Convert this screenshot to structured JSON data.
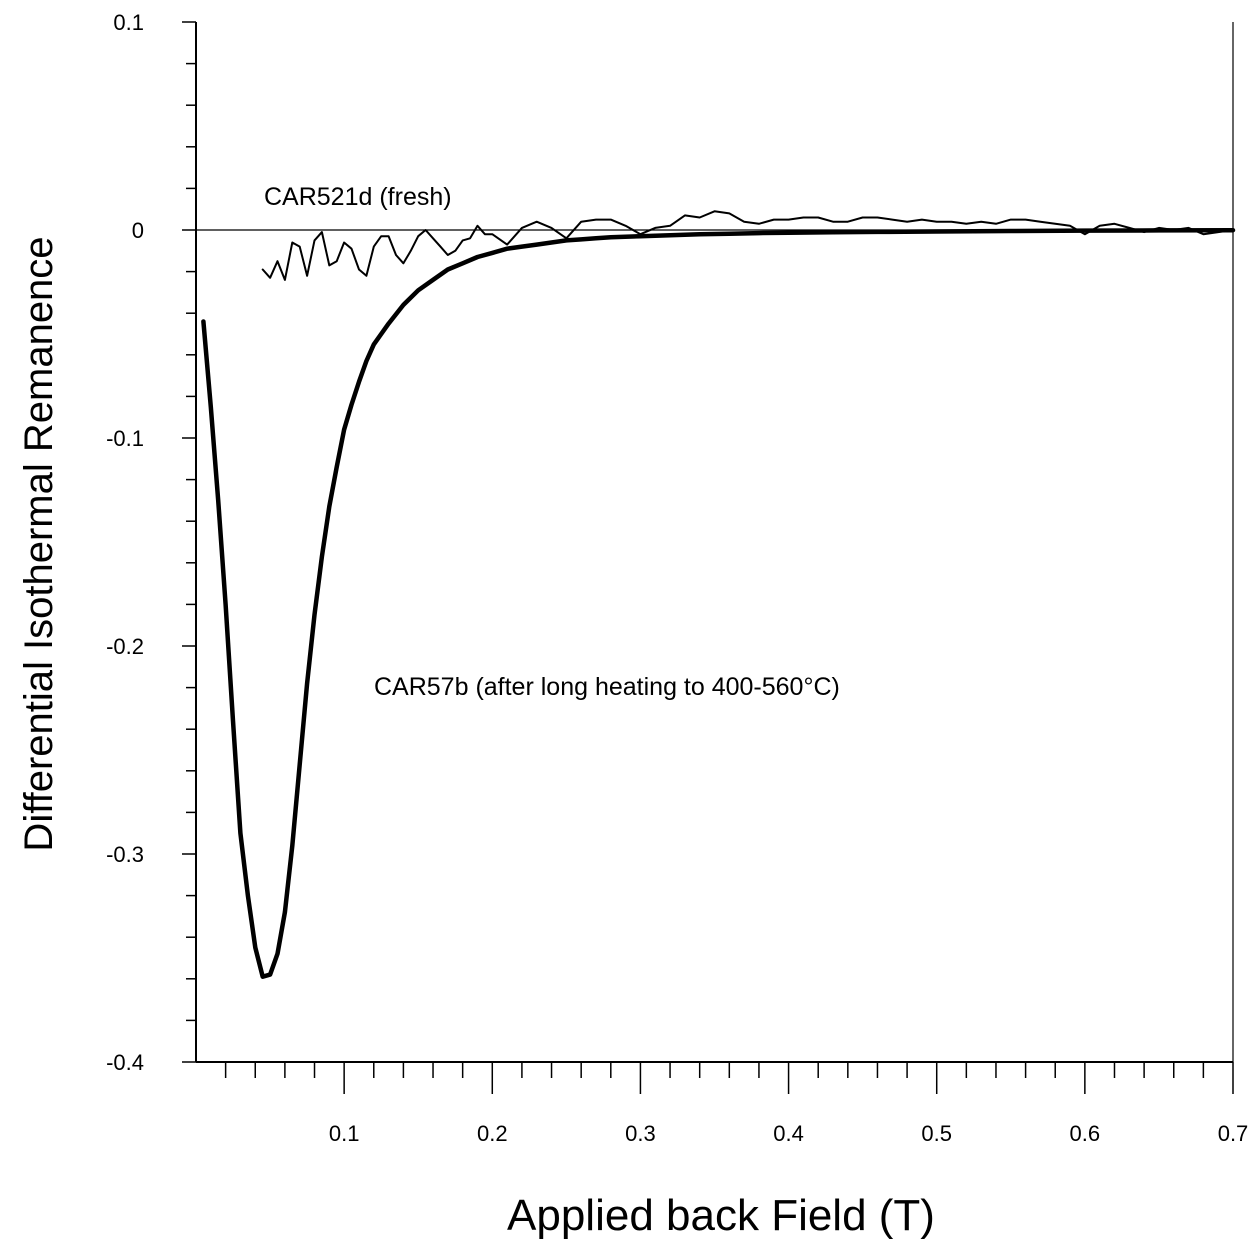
{
  "chart_data": {
    "type": "line",
    "title": "",
    "xlabel": "Applied back Field (T)",
    "ylabel": "Differential Isothermal Remanence",
    "xlim": [
      0,
      0.7
    ],
    "ylim": [
      -0.4,
      0.1
    ],
    "x_ticks": [
      "0.1",
      "0.2",
      "0.3",
      "0.4",
      "0.5",
      "0.6",
      "0.7"
    ],
    "y_ticks": [
      "0.1",
      "0",
      "-0.1",
      "-0.2",
      "-0.3",
      "-0.4"
    ],
    "zero_line": true,
    "grid": false,
    "annotations": [
      "CAR521d (fresh)",
      "CAR57b (after long heating to 400-560°C)"
    ],
    "series": [
      {
        "label": "CAR57b (after long heating to 400-560°C)",
        "style": "thick",
        "x": [
          0.005,
          0.01,
          0.015,
          0.02,
          0.025,
          0.03,
          0.035,
          0.04,
          0.045,
          0.05,
          0.055,
          0.06,
          0.065,
          0.07,
          0.075,
          0.08,
          0.085,
          0.09,
          0.095,
          0.1,
          0.105,
          0.11,
          0.115,
          0.12,
          0.13,
          0.14,
          0.15,
          0.16,
          0.17,
          0.18,
          0.19,
          0.2,
          0.21,
          0.22,
          0.23,
          0.24,
          0.25,
          0.26,
          0.27,
          0.28,
          0.3,
          0.32,
          0.34,
          0.36,
          0.38,
          0.4,
          0.43,
          0.46,
          0.5,
          0.55,
          0.6,
          0.65,
          0.7
        ],
        "y": [
          -0.044,
          -0.085,
          -0.13,
          -0.18,
          -0.236,
          -0.29,
          -0.32,
          -0.345,
          -0.359,
          -0.358,
          -0.348,
          -0.328,
          -0.296,
          -0.257,
          -0.218,
          -0.185,
          -0.157,
          -0.133,
          -0.114,
          -0.096,
          -0.084,
          -0.073,
          -0.063,
          -0.055,
          -0.045,
          -0.036,
          -0.029,
          -0.024,
          -0.019,
          -0.016,
          -0.013,
          -0.011,
          -0.009,
          -0.008,
          -0.007,
          -0.006,
          -0.005,
          -0.0045,
          -0.004,
          -0.0035,
          -0.003,
          -0.0025,
          -0.002,
          -0.0018,
          -0.0015,
          -0.0013,
          -0.0011,
          -0.0009,
          -0.0007,
          -0.0005,
          -0.0003,
          -0.0002,
          -0.0001
        ]
      },
      {
        "label": "CAR521d (fresh)",
        "style": "thin",
        "x": [
          0.045,
          0.05,
          0.055,
          0.06,
          0.065,
          0.07,
          0.075,
          0.08,
          0.085,
          0.09,
          0.095,
          0.1,
          0.105,
          0.11,
          0.115,
          0.12,
          0.125,
          0.13,
          0.135,
          0.14,
          0.145,
          0.15,
          0.155,
          0.16,
          0.165,
          0.17,
          0.175,
          0.18,
          0.185,
          0.19,
          0.195,
          0.2,
          0.21,
          0.22,
          0.23,
          0.24,
          0.25,
          0.26,
          0.27,
          0.28,
          0.29,
          0.3,
          0.31,
          0.32,
          0.33,
          0.34,
          0.35,
          0.36,
          0.37,
          0.38,
          0.39,
          0.4,
          0.41,
          0.42,
          0.43,
          0.44,
          0.45,
          0.46,
          0.47,
          0.48,
          0.49,
          0.5,
          0.51,
          0.52,
          0.53,
          0.54,
          0.55,
          0.56,
          0.57,
          0.58,
          0.59,
          0.6,
          0.61,
          0.62,
          0.63,
          0.64,
          0.65,
          0.66,
          0.67,
          0.68,
          0.69,
          0.7
        ],
        "y": [
          -0.019,
          -0.023,
          -0.015,
          -0.024,
          -0.006,
          -0.008,
          -0.022,
          -0.005,
          -0.001,
          -0.017,
          -0.015,
          -0.006,
          -0.009,
          -0.019,
          -0.022,
          -0.008,
          -0.003,
          -0.003,
          -0.012,
          -0.016,
          -0.01,
          -0.003,
          0.0,
          -0.004,
          -0.008,
          -0.012,
          -0.01,
          -0.005,
          -0.004,
          0.002,
          -0.002,
          -0.002,
          -0.007,
          0.001,
          0.004,
          0.001,
          -0.004,
          0.004,
          0.005,
          0.005,
          0.002,
          -0.002,
          0.001,
          0.002,
          0.007,
          0.006,
          0.009,
          0.008,
          0.004,
          0.003,
          0.005,
          0.005,
          0.006,
          0.006,
          0.004,
          0.004,
          0.006,
          0.006,
          0.005,
          0.004,
          0.005,
          0.004,
          0.004,
          0.003,
          0.004,
          0.003,
          0.005,
          0.005,
          0.004,
          0.003,
          0.002,
          -0.002,
          0.002,
          0.003,
          0.001,
          -0.001,
          0.001,
          0.0,
          0.001,
          -0.002,
          -0.001,
          0.0
        ]
      }
    ]
  }
}
